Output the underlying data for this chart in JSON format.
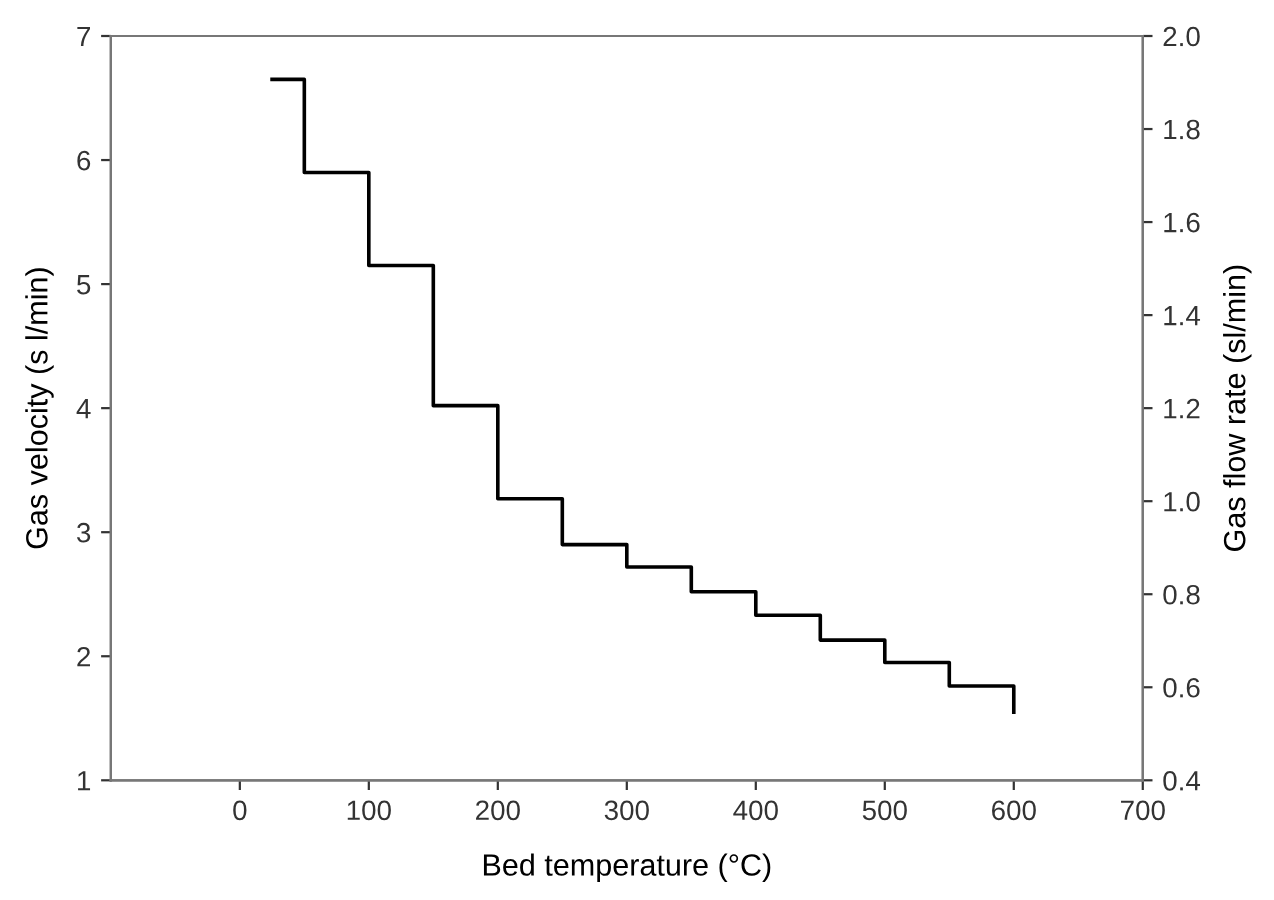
{
  "chart_data": {
    "type": "line",
    "xlabel": "Bed temperature (°C)",
    "ylabel": "Gas velocity (s l/min)",
    "y2label": "Gas flow rate (sl/min)",
    "series": [
      {
        "color": "#000000",
        "x": [
          25,
          50,
          50,
          100,
          100,
          150,
          150,
          200,
          200,
          250,
          250,
          300,
          300,
          350,
          350,
          400,
          400,
          450,
          450,
          500,
          500,
          550,
          550,
          600,
          600
        ],
        "values": [
          6.65,
          6.65,
          5.9,
          5.9,
          5.15,
          5.15,
          4.02,
          4.02,
          3.27,
          3.27,
          2.9,
          2.9,
          2.72,
          2.72,
          2.52,
          2.52,
          2.33,
          2.33,
          2.13,
          2.13,
          1.95,
          1.95,
          1.76,
          1.76,
          1.55
        ]
      }
    ],
    "xlim": [
      -100,
      700
    ],
    "xticks": [
      0,
      100,
      200,
      300,
      400,
      500,
      600,
      700
    ],
    "ylim": [
      1,
      7
    ],
    "yticks": [
      1,
      2,
      3,
      4,
      5,
      6,
      7
    ],
    "y2lim": [
      0.4,
      2.0
    ],
    "y2ticks": [
      {
        "value": 0.4,
        "label": "0.4"
      },
      {
        "value": 0.6,
        "label": "0.6"
      },
      {
        "value": 0.8,
        "label": "0.8"
      },
      {
        "value": 1.0,
        "label": "1.0"
      },
      {
        "value": 1.2,
        "label": "1.2"
      },
      {
        "value": 1.4,
        "label": "1.4"
      },
      {
        "value": 1.6,
        "label": "1.6"
      },
      {
        "value": 1.8,
        "label": "1.8"
      },
      {
        "value": 2.0,
        "label": "2.0"
      }
    ],
    "grid": false,
    "legend": false
  }
}
